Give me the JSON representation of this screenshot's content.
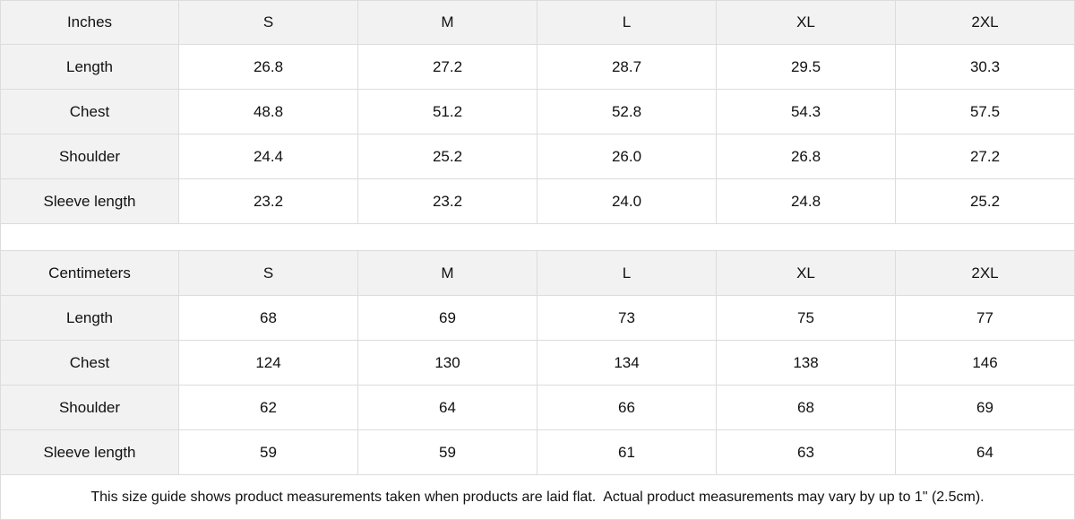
{
  "inches": {
    "header": [
      "Inches",
      "S",
      "M",
      "L",
      "XL",
      "2XL"
    ],
    "rows": [
      [
        "Length",
        "26.8",
        "27.2",
        "28.7",
        "29.5",
        "30.3"
      ],
      [
        "Chest",
        "48.8",
        "51.2",
        "52.8",
        "54.3",
        "57.5"
      ],
      [
        "Shoulder",
        "24.4",
        "25.2",
        "26.0",
        "26.8",
        "27.2"
      ],
      [
        "Sleeve length",
        "23.2",
        "23.2",
        "24.0",
        "24.8",
        "25.2"
      ]
    ]
  },
  "centimeters": {
    "header": [
      "Centimeters",
      "S",
      "M",
      "L",
      "XL",
      "2XL"
    ],
    "rows": [
      [
        "Length",
        "68",
        "69",
        "73",
        "75",
        "77"
      ],
      [
        "Chest",
        "124",
        "130",
        "134",
        "138",
        "146"
      ],
      [
        "Shoulder",
        "62",
        "64",
        "66",
        "68",
        "69"
      ],
      [
        "Sleeve length",
        "59",
        "59",
        "61",
        "63",
        "64"
      ]
    ]
  },
  "note": "This size guide shows product measurements taken when products are laid flat.  Actual product measurements may vary by up to 1\" (2.5cm)."
}
